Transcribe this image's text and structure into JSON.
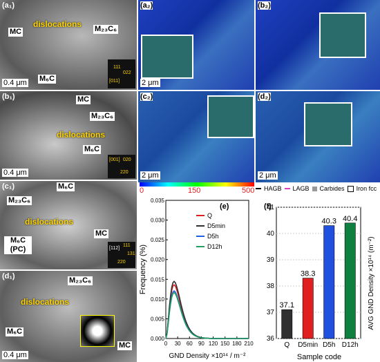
{
  "tem_panels": [
    {
      "id": "a1",
      "label": "(a₁)",
      "labels": [
        "MC",
        "dislocations",
        "M₂₃C₆",
        "M₆C"
      ],
      "scale": "0.4 μm",
      "inset": [
        "[011]",
        "111",
        "022"
      ]
    },
    {
      "id": "b1",
      "label": "(b₁)",
      "labels": [
        "MC",
        "M₂₃C₆",
        "dislocations",
        "M₆C"
      ],
      "scale": "0.4 μm",
      "inset": [
        "[001]",
        "020",
        "220",
        "200"
      ]
    },
    {
      "id": "c1",
      "label": "(c₁)",
      "labels": [
        "M₆C",
        "M₂₃C₆",
        "dislocations",
        "MC",
        "M₆C (PC)"
      ],
      "scale": "0.4 μm",
      "inset": [
        "[112]",
        "111",
        "220",
        "131"
      ]
    },
    {
      "id": "d1",
      "label": "(d₁)",
      "labels": [
        "M₂₃C₆",
        "dislocations",
        "M₆C",
        "MC"
      ],
      "scale": "0.4 μm"
    }
  ],
  "ebsd_panels": [
    {
      "id": "a2",
      "label": "(a₂)",
      "scale": "2 μm"
    },
    {
      "id": "b2",
      "label": "(b₂)",
      "scale": "2 μm"
    },
    {
      "id": "c2",
      "label": "(c₂)",
      "scale": "2 μm"
    },
    {
      "id": "d2",
      "label": "(d₂)",
      "scale": "2 μm"
    }
  ],
  "colorbar": {
    "ticks": [
      "0",
      "150",
      "500"
    ]
  },
  "legend": {
    "items": [
      {
        "label": "HAGB",
        "color": "#000000"
      },
      {
        "label": "LAGB",
        "color": "#e040c0"
      },
      {
        "label": "Carbides",
        "color": "#9a9a9a"
      },
      {
        "label": "Iron fcc",
        "color": "#ffffff"
      }
    ]
  },
  "chart_data": [
    {
      "type": "line",
      "panel": "(e)",
      "xlabel": "GND Density ×10¹⁴ / m⁻²",
      "ylabel": "Frequency (%)",
      "xlim": [
        0,
        210
      ],
      "ylim": [
        0,
        0.035
      ],
      "xticks": [
        0,
        30,
        60,
        90,
        120,
        150,
        180,
        210
      ],
      "yticks": [
        0.0,
        0.005,
        0.01,
        0.015,
        0.02,
        0.025,
        0.03,
        0.035
      ],
      "series": [
        {
          "name": "Q",
          "color": "#e02020",
          "peak": 0.031
        },
        {
          "name": "D5min",
          "color": "#303030",
          "peak": 0.033
        },
        {
          "name": "D5h",
          "color": "#2060e0",
          "peak": 0.0275
        },
        {
          "name": "D12h",
          "color": "#20a060",
          "peak": 0.0265
        }
      ],
      "legend": [
        "Q",
        "D5min",
        "D5h",
        "D12h"
      ]
    },
    {
      "type": "bar",
      "panel": "(f)",
      "categories": [
        "Q",
        "D5min",
        "D5h",
        "D12h"
      ],
      "values": [
        37.1,
        38.3,
        40.3,
        40.4
      ],
      "xlabel": "Sample code",
      "ylabel": "AVG GND Density ×10¹⁴ (m⁻²)",
      "ylim": [
        36,
        41
      ],
      "yticks": [
        36,
        37,
        38,
        39,
        40,
        41
      ],
      "colors": [
        "#303030",
        "#e02020",
        "#2050e0",
        "#108040"
      ]
    }
  ]
}
